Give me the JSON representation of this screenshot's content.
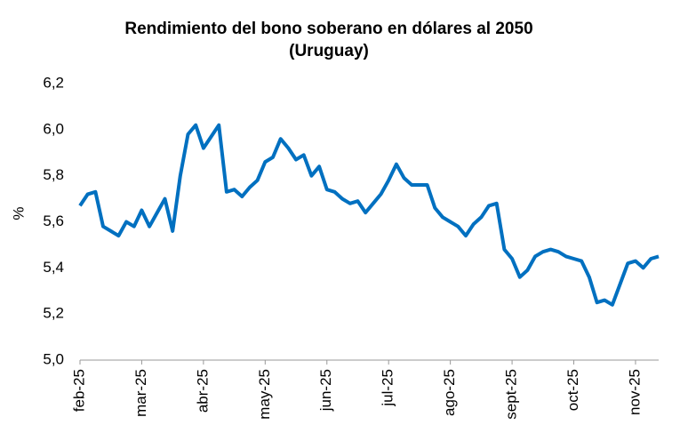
{
  "chart_data": {
    "type": "line",
    "title": "Rendimiento del bono soberano en dólares al 2050",
    "subtitle": "(Uruguay)",
    "y_label": "%",
    "categories": [
      "feb-25",
      null,
      null,
      null,
      null,
      null,
      null,
      null,
      "mar-25",
      null,
      null,
      null,
      null,
      null,
      null,
      null,
      "abr-25",
      null,
      null,
      null,
      null,
      null,
      null,
      null,
      "may-25",
      null,
      null,
      null,
      null,
      null,
      null,
      null,
      "jun-25",
      null,
      null,
      null,
      null,
      null,
      null,
      null,
      "jul-25",
      null,
      null,
      null,
      null,
      null,
      null,
      null,
      "ago-25",
      null,
      null,
      null,
      null,
      null,
      null,
      null,
      "sept-25",
      null,
      null,
      null,
      null,
      null,
      null,
      null,
      "oct-25",
      null,
      null,
      null,
      null,
      null,
      null,
      null,
      "nov-25",
      null,
      null,
      null
    ],
    "values": [
      5.67,
      5.72,
      5.73,
      5.58,
      5.56,
      5.54,
      5.6,
      5.58,
      5.65,
      5.58,
      5.64,
      5.7,
      5.56,
      5.8,
      5.98,
      6.02,
      5.92,
      5.97,
      6.02,
      5.73,
      5.74,
      5.71,
      5.75,
      5.78,
      5.86,
      5.88,
      5.96,
      5.92,
      5.87,
      5.89,
      5.8,
      5.84,
      5.74,
      5.73,
      5.7,
      5.68,
      5.69,
      5.64,
      5.68,
      5.72,
      5.78,
      5.85,
      5.79,
      5.76,
      5.76,
      5.76,
      5.66,
      5.62,
      5.6,
      5.58,
      5.54,
      5.59,
      5.62,
      5.67,
      5.68,
      5.48,
      5.44,
      5.36,
      5.39,
      5.45,
      5.47,
      5.48,
      5.47,
      5.45,
      5.44,
      5.43,
      5.36,
      5.25,
      5.26,
      5.24,
      5.33,
      5.42,
      5.43,
      5.4,
      5.44,
      5.45
    ],
    "color": "#0070c0",
    "ylim": [
      5.0,
      6.2
    ],
    "yticks": [
      {
        "value": 5.0,
        "label": "5,0"
      },
      {
        "value": 5.2,
        "label": "5,2"
      },
      {
        "value": 5.4,
        "label": "5,4"
      },
      {
        "value": 5.6,
        "label": "5,6"
      },
      {
        "value": 5.8,
        "label": "5,8"
      },
      {
        "value": 6.0,
        "label": "6,0"
      },
      {
        "value": 6.2,
        "label": "6,2"
      }
    ],
    "grid": false
  }
}
